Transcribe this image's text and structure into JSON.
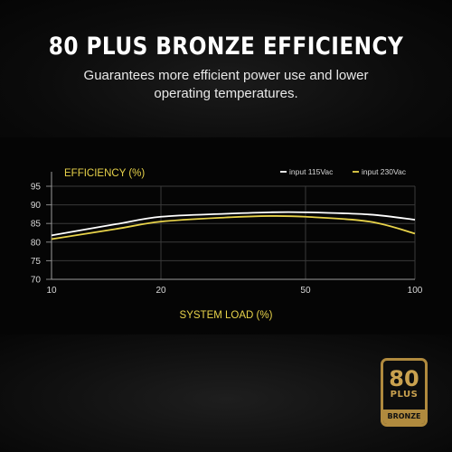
{
  "header": {
    "title": "80 PLUS BRONZE EFFICIENCY",
    "subtitle": "Guarantees more efficient power use and lower operating temperatures."
  },
  "badge": {
    "number": "80",
    "plus": "PLUS",
    "tier": "BRONZE"
  },
  "chart_data": {
    "type": "line",
    "title": "EFFICIENCY (%)",
    "ylabel": "EFFICIENCY (%)",
    "xlabel": "SYSTEM LOAD (%)",
    "x": [
      10,
      20,
      50,
      100
    ],
    "x_ticks": [
      "10",
      "20",
      "50",
      "100"
    ],
    "y_ticks": [
      "70",
      "75",
      "80",
      "85",
      "90",
      "95"
    ],
    "ylim": [
      70,
      95
    ],
    "grid": true,
    "legend_position": "top-right",
    "series": [
      {
        "name": "input 115Vac",
        "color": "#ffffff",
        "x": [
          10,
          15,
          20,
          30,
          40,
          50,
          75,
          100
        ],
        "values": [
          81.8,
          84.8,
          86.8,
          87.6,
          88.0,
          88.0,
          87.4,
          86.0
        ]
      },
      {
        "name": "input 230Vac",
        "color": "#e8d34a",
        "x": [
          10,
          15,
          20,
          30,
          40,
          50,
          75,
          100
        ],
        "values": [
          80.8,
          83.5,
          85.5,
          86.6,
          87.0,
          86.8,
          85.5,
          82.3
        ]
      }
    ]
  }
}
